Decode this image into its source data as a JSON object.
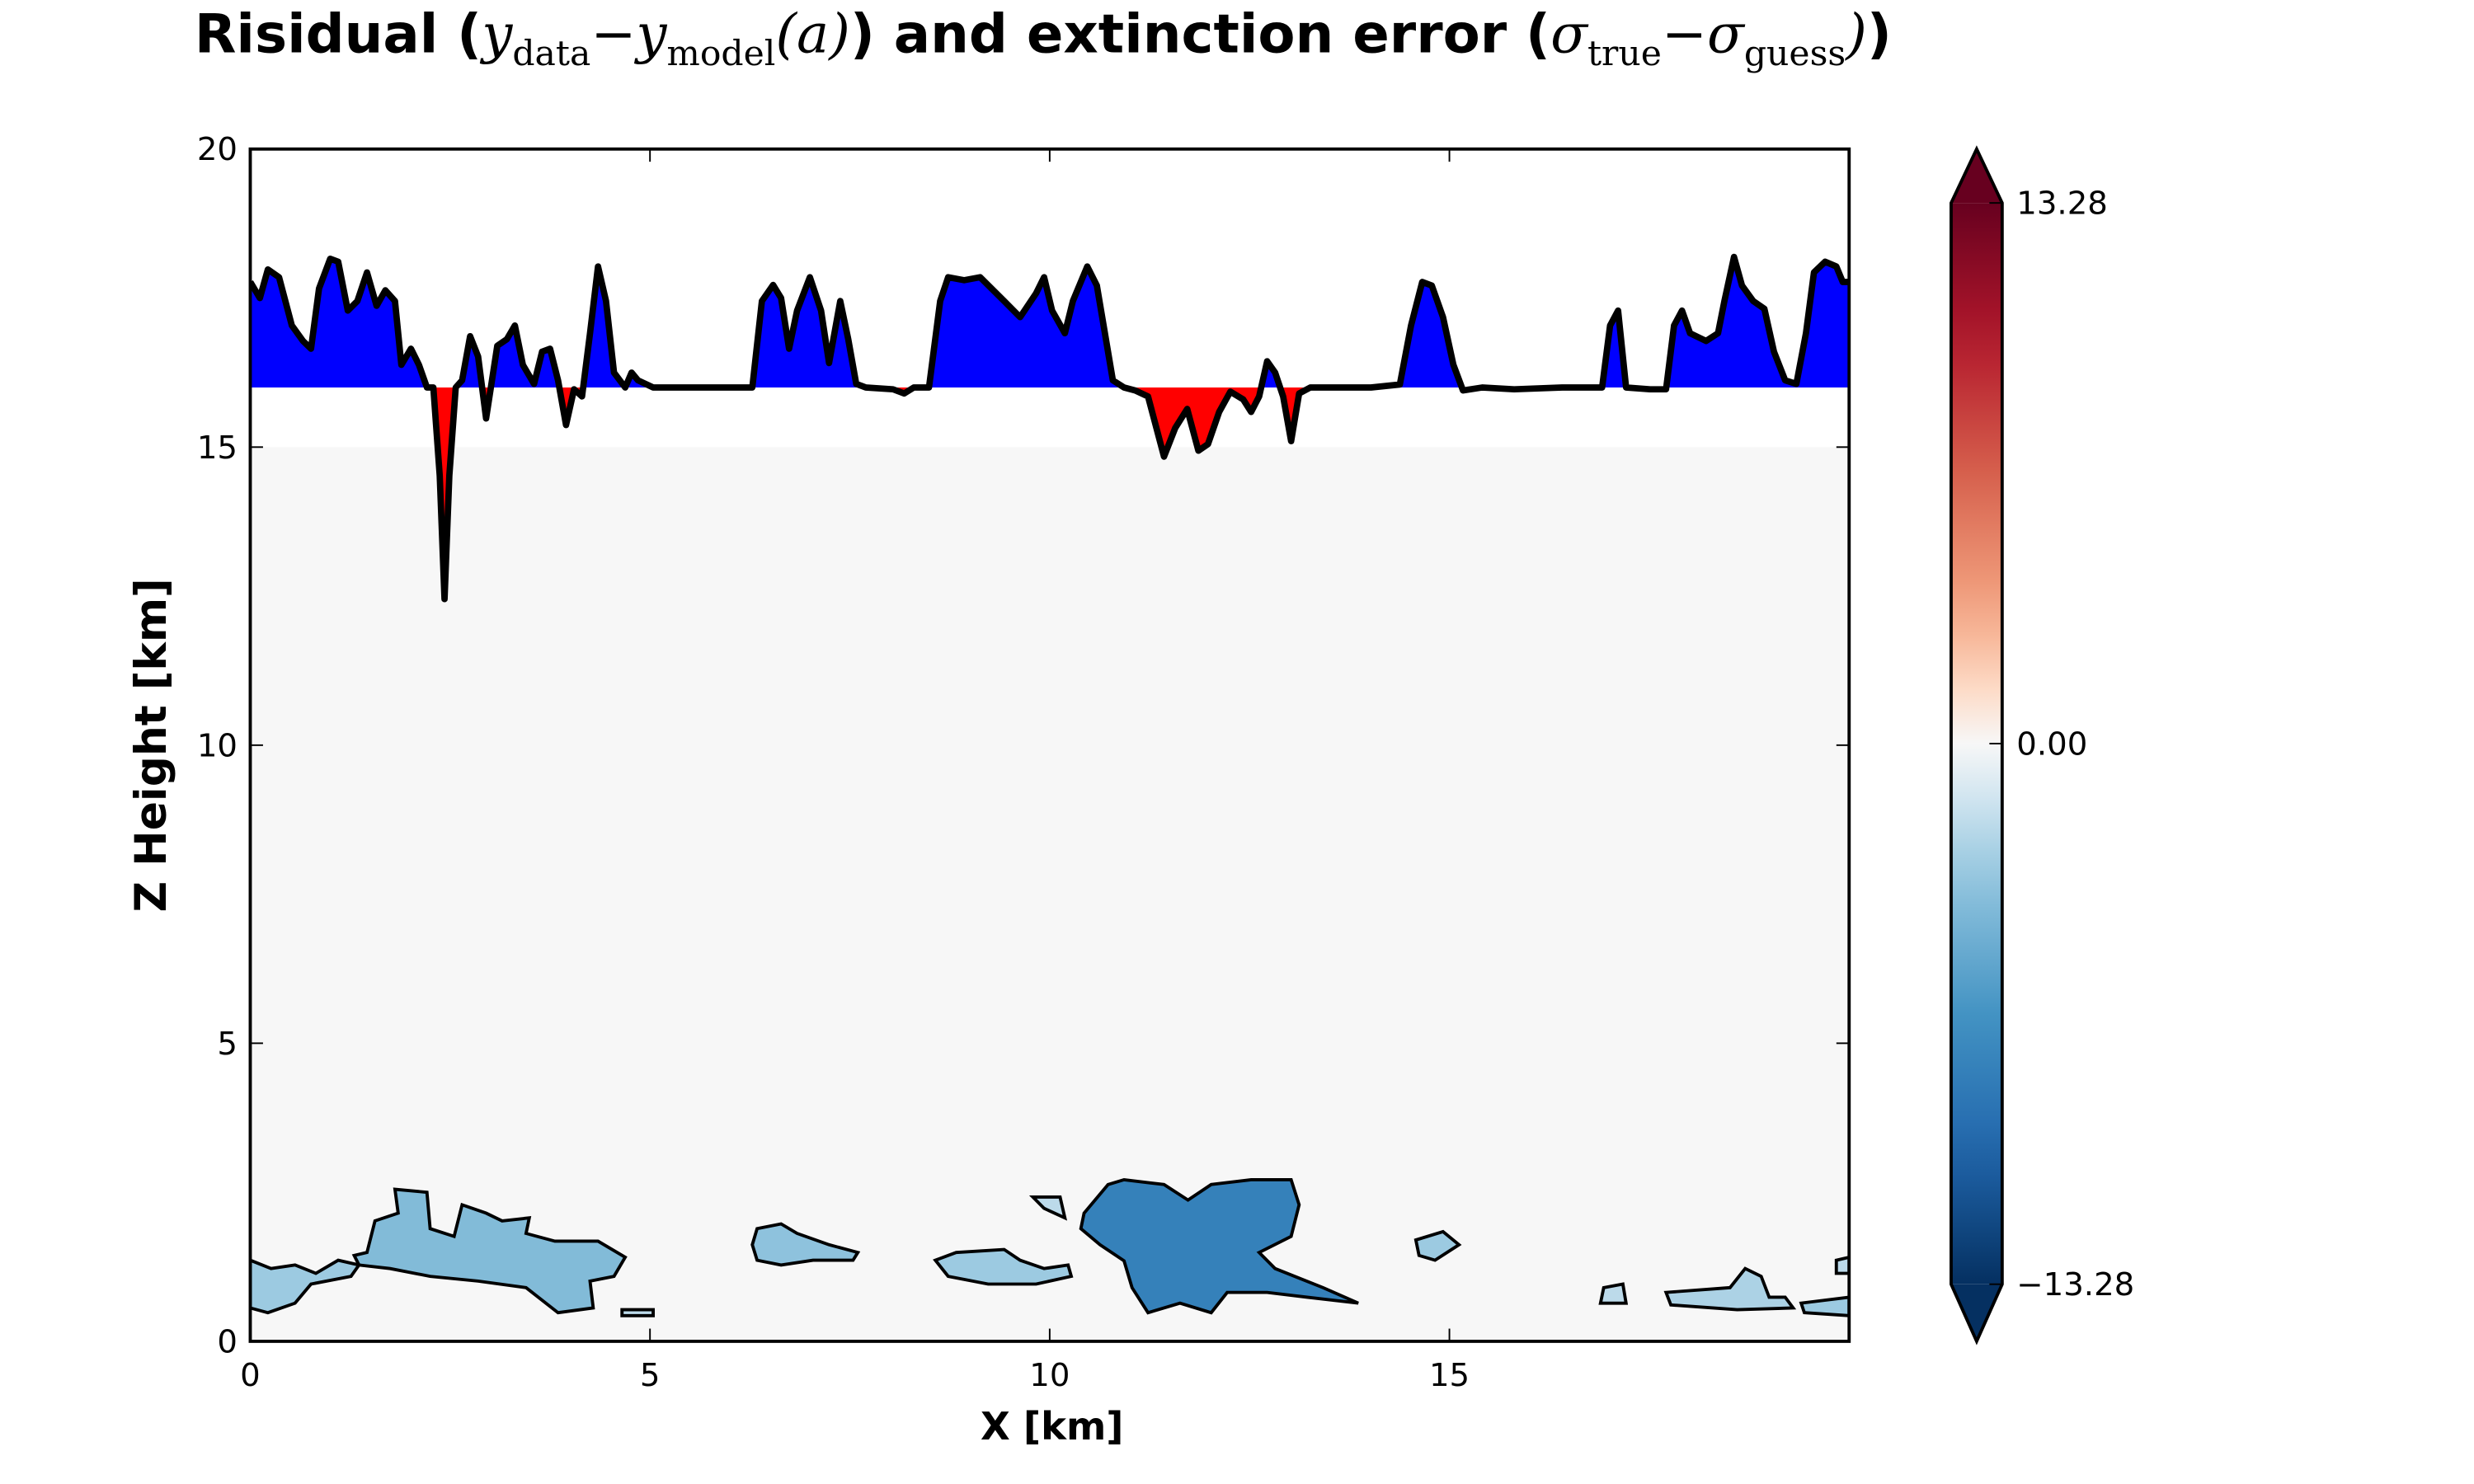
{
  "chart_data": {
    "type": "residual-field",
    "title": [
      {
        "text": "Risidual (",
        "style": "bold"
      },
      {
        "text": "y",
        "style": "math"
      },
      {
        "text": "data",
        "style": "sub"
      },
      {
        "text": "−",
        "style": "math"
      },
      {
        "text": "y",
        "style": "math"
      },
      {
        "text": "model",
        "style": "sub"
      },
      {
        "text": "(a)",
        "style": "math"
      },
      {
        "text": ") and extinction error (",
        "style": "bold"
      },
      {
        "text": "σ",
        "style": "math"
      },
      {
        "text": "true",
        "style": "sub"
      },
      {
        "text": "−",
        "style": "math"
      },
      {
        "text": "σ",
        "style": "math"
      },
      {
        "text": "guess",
        "style": "sub"
      },
      {
        "text": ")",
        "style": "math"
      },
      {
        "text": ")",
        "style": "bold"
      }
    ],
    "xlabel": "X [km]",
    "ylabel": "Z Height [km]",
    "xlim": [
      0,
      20
    ],
    "ylim": [
      0,
      20
    ],
    "xticks": [
      0,
      5,
      10,
      15
    ],
    "yticks": [
      0,
      5,
      10,
      15,
      20
    ],
    "field_zlim": [
      0,
      15
    ],
    "colormap": "RdBu_r",
    "clim": [
      -13.28,
      13.28
    ],
    "cticks": [
      {
        "value": -13.28,
        "label": "−13.28"
      },
      {
        "value": 0,
        "label": "0.00"
      },
      13.28
    ],
    "residual": {
      "reference": 16,
      "above_color": "#0000ff",
      "below_color": "#ff0000",
      "line_color": "#000000",
      "x": [
        0,
        0.12,
        0.22,
        0.36,
        0.52,
        0.66,
        0.76,
        0.86,
        1.0,
        1.1,
        1.22,
        1.34,
        1.46,
        1.58,
        1.69,
        1.81,
        1.89,
        2.01,
        2.11,
        2.21,
        2.29,
        2.37,
        2.43,
        2.49,
        2.57,
        2.65,
        2.75,
        2.85,
        2.95,
        3.09,
        3.21,
        3.31,
        3.41,
        3.55,
        3.65,
        3.75,
        3.85,
        3.95,
        4.05,
        4.15,
        4.25,
        4.35,
        4.45,
        4.55,
        4.69,
        4.77,
        4.85,
        5.04,
        5.64,
        6.04,
        6.28,
        6.4,
        6.54,
        6.64,
        6.74,
        6.84,
        7.0,
        7.14,
        7.24,
        7.38,
        7.48,
        7.58,
        7.7,
        8.04,
        8.18,
        8.3,
        8.49,
        8.63,
        8.73,
        8.93,
        9.13,
        9.43,
        9.63,
        9.83,
        9.93,
        10.03,
        10.19,
        10.29,
        10.47,
        10.59,
        10.79,
        10.93,
        11.07,
        11.23,
        11.43,
        11.57,
        11.72,
        11.86,
        11.98,
        12.12,
        12.26,
        12.42,
        12.52,
        12.62,
        12.72,
        12.82,
        12.92,
        13.02,
        13.12,
        13.26,
        13.62,
        14.02,
        14.38,
        14.52,
        14.66,
        14.78,
        14.92,
        15.05,
        15.17,
        15.41,
        15.81,
        16.41,
        16.91,
        17.01,
        17.11,
        17.21,
        17.51,
        17.71,
        17.81,
        17.91,
        18.01,
        18.21,
        18.36,
        18.44,
        18.56,
        18.66,
        18.8,
        18.94,
        19.06,
        19.2,
        19.34,
        19.46,
        19.56,
        19.7,
        19.84,
        19.92,
        20
      ],
      "values": [
        17.77,
        17.5,
        17.98,
        17.85,
        17.04,
        16.78,
        16.65,
        17.66,
        18.16,
        18.11,
        17.29,
        17.45,
        17.93,
        17.37,
        17.63,
        17.45,
        16.38,
        16.65,
        16.38,
        16.0,
        16.0,
        14.52,
        12.45,
        14.52,
        16.0,
        16.12,
        16.86,
        16.52,
        15.48,
        16.7,
        16.81,
        17.04,
        16.38,
        16.06,
        16.6,
        16.65,
        16.12,
        15.37,
        15.97,
        15.85,
        16.91,
        18.03,
        17.45,
        16.25,
        16.0,
        16.25,
        16.12,
        16.0,
        16.0,
        16.0,
        16.0,
        17.45,
        17.72,
        17.5,
        16.65,
        17.29,
        17.85,
        17.29,
        16.41,
        17.45,
        16.81,
        16.06,
        16.0,
        15.97,
        15.9,
        16.0,
        16.0,
        17.45,
        17.85,
        17.8,
        17.85,
        17.45,
        17.18,
        17.58,
        17.85,
        17.29,
        16.91,
        17.45,
        18.03,
        17.71,
        16.12,
        16.0,
        15.95,
        15.85,
        14.84,
        15.32,
        15.64,
        14.94,
        15.05,
        15.59,
        15.93,
        15.8,
        15.59,
        15.85,
        16.44,
        16.25,
        15.85,
        15.1,
        15.9,
        16.0,
        16.0,
        16.0,
        16.05,
        17.04,
        17.77,
        17.71,
        17.18,
        16.38,
        15.95,
        16.0,
        15.97,
        16.0,
        16.0,
        17.04,
        17.29,
        16.0,
        15.97,
        15.97,
        17.04,
        17.29,
        16.91,
        16.78,
        16.91,
        17.45,
        18.19,
        17.71,
        17.45,
        17.32,
        16.6,
        16.12,
        16.06,
        16.91,
        17.93,
        18.11,
        18.03,
        17.77,
        17.77
      ]
    },
    "patches": [
      {
        "value": -4,
        "x": [
          1.46,
          1.56,
          1.85,
          1.81,
          2.21,
          2.25,
          2.55,
          2.65,
          2.95,
          3.15,
          3.49,
          3.45,
          3.81,
          4.35,
          4.69,
          4.55,
          4.25,
          4.29,
          3.85,
          3.45,
          2.85,
          2.25,
          1.75,
          1.36,
          1.3
        ],
        "z": [
          1.49,
          2.02,
          2.15,
          2.55,
          2.5,
          1.89,
          1.76,
          2.29,
          2.15,
          2.02,
          2.07,
          1.81,
          1.68,
          1.68,
          1.41,
          1.09,
          1.01,
          0.56,
          0.48,
          0.9,
          1.01,
          1.09,
          1.22,
          1.28,
          1.44
        ]
      },
      {
        "value": -3,
        "x": [
          0,
          0.26,
          0.56,
          0.82,
          1.1,
          1.36,
          1.26,
          0.76,
          0.56,
          0.22,
          0
        ],
        "z": [
          1.36,
          1.22,
          1.28,
          1.14,
          1.36,
          1.28,
          1.09,
          0.96,
          0.64,
          0.48,
          0.56
        ]
      },
      {
        "value": -2,
        "x": [
          4.65,
          5.04,
          5.04,
          4.65
        ],
        "z": [
          0.53,
          0.53,
          0.43,
          0.43
        ]
      },
      {
        "value": -3.5,
        "x": [
          6.34,
          6.64,
          6.84,
          7.24,
          7.6,
          7.54,
          7.04,
          6.64,
          6.34,
          6.28
        ],
        "z": [
          1.89,
          1.97,
          1.81,
          1.62,
          1.49,
          1.36,
          1.36,
          1.28,
          1.36,
          1.62
        ]
      },
      {
        "value": -3,
        "x": [
          8.57,
          8.83,
          9.43,
          9.63,
          9.93,
          10.23,
          10.27,
          9.83,
          9.23,
          8.73
        ],
        "z": [
          1.36,
          1.49,
          1.54,
          1.36,
          1.22,
          1.28,
          1.09,
          0.96,
          0.96,
          1.09
        ]
      },
      {
        "value": -2,
        "x": [
          9.79,
          10.13,
          10.19,
          9.93
        ],
        "z": [
          2.42,
          2.42,
          2.07,
          2.23
        ]
      },
      {
        "value": -8,
        "x": [
          10.43,
          10.73,
          10.93,
          11.43,
          11.73,
          12.02,
          12.52,
          13.02,
          13.12,
          13.02,
          12.62,
          12.82,
          13.42,
          13.86,
          13.22,
          12.72,
          12.22,
          12.02,
          11.63,
          11.23,
          11.03,
          10.93,
          10.63,
          10.39
        ],
        "z": [
          2.15,
          2.63,
          2.71,
          2.63,
          2.37,
          2.63,
          2.71,
          2.71,
          2.29,
          1.76,
          1.49,
          1.22,
          0.9,
          0.64,
          0.74,
          0.82,
          0.82,
          0.48,
          0.64,
          0.48,
          0.9,
          1.35,
          1.62,
          1.89
        ]
      },
      {
        "value": -3,
        "x": [
          14.58,
          14.92,
          15.12,
          14.82,
          14.62
        ],
        "z": [
          1.7,
          1.84,
          1.62,
          1.36,
          1.44
        ]
      },
      {
        "value": -2,
        "x": [
          16.93,
          17.17,
          17.21,
          16.89
        ],
        "z": [
          0.9,
          0.96,
          0.64,
          0.64
        ]
      },
      {
        "value": -2.5,
        "x": [
          17.71,
          18.51,
          18.7,
          18.9,
          19.0,
          19.2,
          19.3,
          18.6,
          17.77
        ],
        "z": [
          0.82,
          0.9,
          1.22,
          1.09,
          0.74,
          0.74,
          0.56,
          0.53,
          0.61
        ]
      },
      {
        "value": -3,
        "x": [
          19.4,
          20,
          20,
          19.44
        ],
        "z": [
          0.64,
          0.74,
          0.43,
          0.48
        ]
      },
      {
        "value": -2,
        "x": [
          19.84,
          20,
          20,
          19.84
        ],
        "z": [
          1.36,
          1.41,
          1.14,
          1.14
        ]
      }
    ]
  }
}
